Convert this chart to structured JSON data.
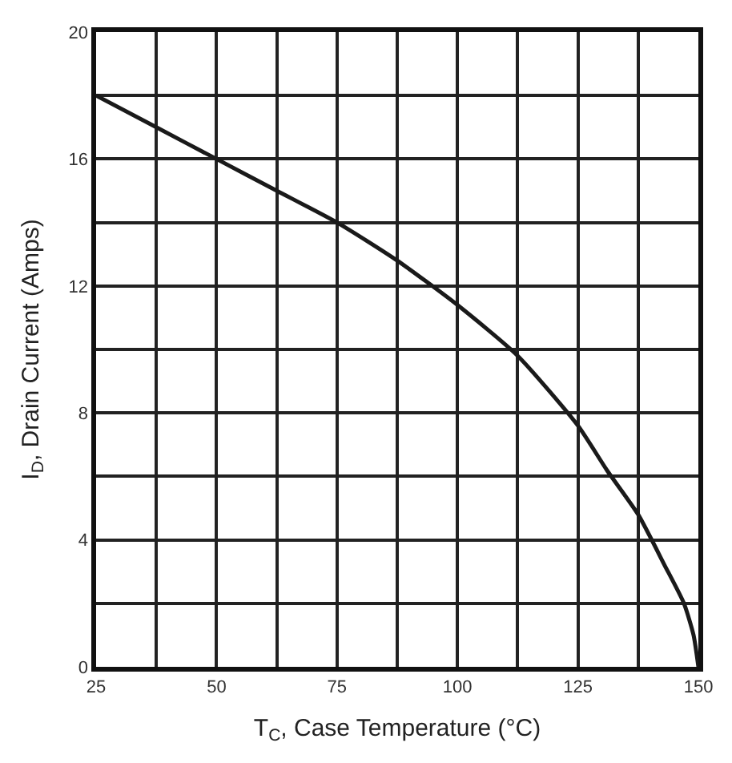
{
  "chart_data": {
    "type": "line",
    "xlabel": "T$_{C}$, Case Temperature (°C)",
    "ylabel": "I$_{D}$, Drain Current (Amps)",
    "x": [
      25,
      37.5,
      50,
      62.5,
      75,
      87.5,
      100,
      112.5,
      125,
      131,
      137.5,
      143,
      147,
      149,
      150
    ],
    "series": [
      {
        "color": "#1a1a1a",
        "values": [
          18,
          17,
          16,
          15,
          14,
          12.8,
          11.4,
          9.8,
          7.6,
          6.2,
          4.8,
          3.2,
          2,
          1,
          0
        ]
      }
    ],
    "xlim": [
      25,
      150
    ],
    "xticks": [
      25,
      {
        "value": 37.5,
        "label": null
      },
      50,
      {
        "value": 62.5,
        "label": null
      },
      75,
      {
        "value": 87.5,
        "label": null
      },
      100,
      {
        "value": 112.5,
        "label": null
      },
      125,
      {
        "value": 137.5,
        "label": null
      },
      150
    ],
    "ylim": [
      0,
      20
    ],
    "yticks": [
      0,
      {
        "value": 2,
        "label": null
      },
      4,
      {
        "value": 6,
        "label": null
      },
      8,
      {
        "value": 10,
        "label": null
      },
      12,
      {
        "value": 14,
        "label": null
      },
      16,
      {
        "value": 18,
        "label": null
      },
      20
    ],
    "grid": true,
    "marker": "none",
    "line_style": "solid"
  }
}
